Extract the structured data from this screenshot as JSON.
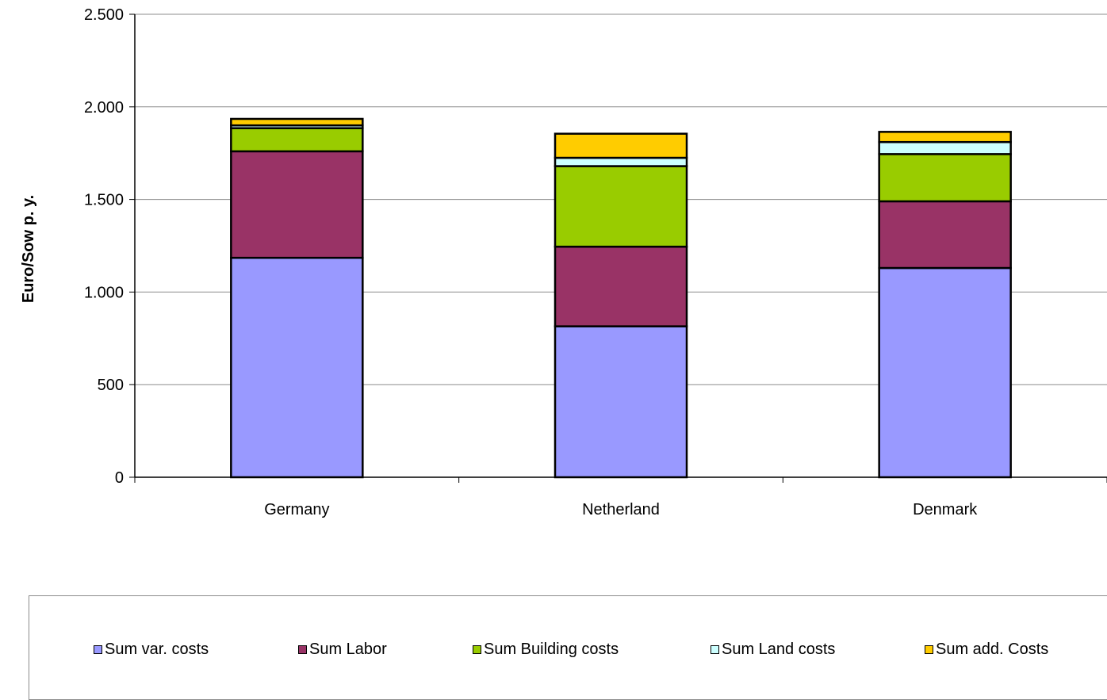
{
  "chart_data": {
    "type": "bar",
    "stacked": true,
    "title": "",
    "xlabel": "",
    "ylabel": "Euro/Sow p. y.",
    "categories": [
      "Germany",
      "Netherland",
      "Denmark"
    ],
    "ylim": [
      0,
      2500
    ],
    "yticks": [
      0,
      500,
      1000,
      1500,
      2000,
      2500
    ],
    "ytick_labels": [
      "0",
      "500",
      "1.000",
      "1.500",
      "2.000",
      "2.500"
    ],
    "grid": "horizontal",
    "legend_position": "bottom",
    "series": [
      {
        "name": "Sum var. costs",
        "color": "#9999ff",
        "values": [
          1185,
          815,
          1130
        ]
      },
      {
        "name": "Sum Labor",
        "color": "#993366",
        "values": [
          575,
          430,
          360
        ]
      },
      {
        "name": "Sum Building costs",
        "color": "#99cc00",
        "values": [
          125,
          435,
          255
        ]
      },
      {
        "name": "Sum Land costs",
        "color": "#ccffff",
        "values": [
          15,
          45,
          65
        ]
      },
      {
        "name": "Sum add. Costs",
        "color": "#ffcc00",
        "values": [
          35,
          130,
          55
        ]
      }
    ]
  }
}
